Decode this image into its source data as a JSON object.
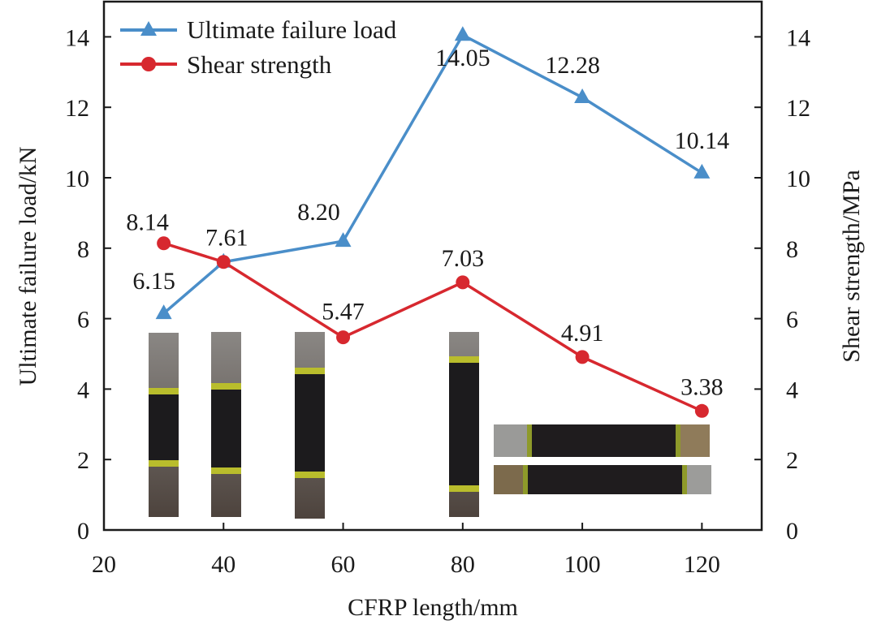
{
  "chart_data": {
    "type": "line",
    "title": "",
    "xlabel": "CFRP length/mm",
    "ylabel": "Ultimate failure load/kN",
    "y2label": "Shear strength/MPa",
    "xlim": [
      20,
      130
    ],
    "ylim": [
      0,
      15
    ],
    "y2lim": [
      0,
      15
    ],
    "xticks": [
      20,
      40,
      60,
      80,
      100,
      120
    ],
    "yticks": [
      0,
      2,
      4,
      6,
      8,
      10,
      12,
      14
    ],
    "y2ticks": [
      0,
      2,
      4,
      6,
      8,
      10,
      12,
      14
    ],
    "grid": false,
    "legend_position": "top-left",
    "x": [
      30,
      40,
      60,
      80,
      100,
      120
    ],
    "series": [
      {
        "name": "Ultimate failure load",
        "axis": "left",
        "marker": "triangle",
        "color": "#4a8ec9",
        "values": [
          6.15,
          7.61,
          8.2,
          14.05,
          12.28,
          10.14
        ],
        "labels": [
          "6.15",
          "",
          "8.20",
          "14.05",
          "12.28",
          "10.14"
        ]
      },
      {
        "name": "Shear strength",
        "axis": "right",
        "marker": "circle",
        "color": "#d7282f",
        "values": [
          8.14,
          7.61,
          5.47,
          7.03,
          4.91,
          3.38
        ],
        "labels": [
          "8.14",
          "7.61",
          "5.47",
          "7.03",
          "4.91",
          "3.38"
        ]
      }
    ],
    "inset_photos": [
      {
        "name": "specimen-30mm",
        "orientation": "vertical",
        "x": 30
      },
      {
        "name": "specimen-40mm",
        "orientation": "vertical",
        "x": 40
      },
      {
        "name": "specimen-60mm",
        "orientation": "vertical",
        "x": 60
      },
      {
        "name": "specimen-80mm",
        "orientation": "vertical",
        "x": 80
      },
      {
        "name": "specimen-100mm-a",
        "orientation": "horizontal",
        "x": 100
      },
      {
        "name": "specimen-100mm-b",
        "orientation": "horizontal",
        "x": 100
      }
    ]
  }
}
